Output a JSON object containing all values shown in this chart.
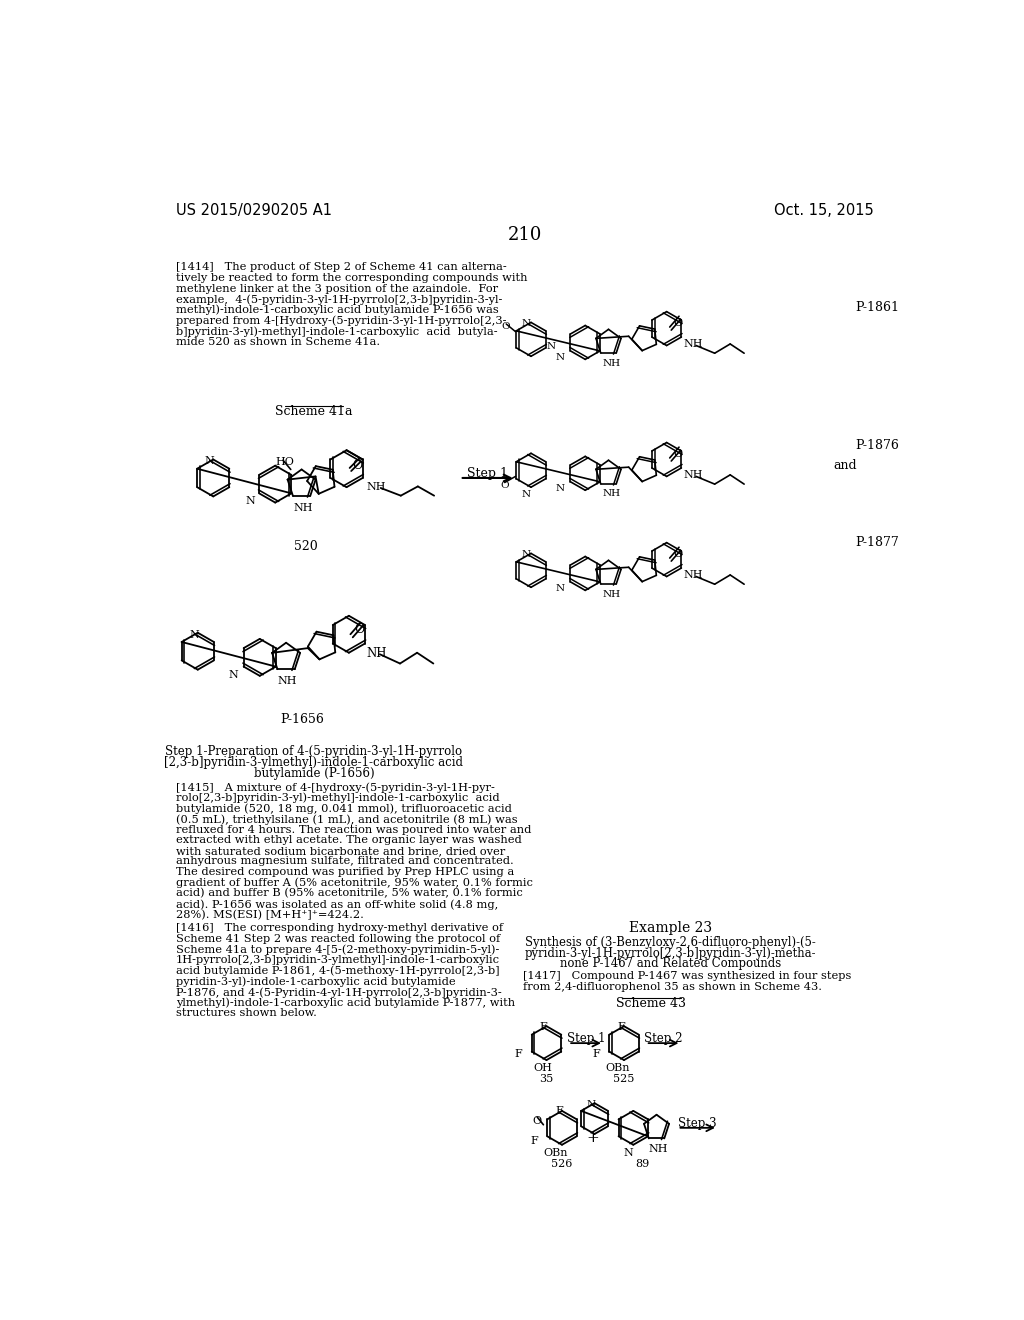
{
  "page_number": "210",
  "header_left": "US 2015/0290205 A1",
  "header_right": "Oct. 15, 2015",
  "background_color": "#ffffff",
  "text_color": "#000000",
  "font_size_header": 10.5,
  "font_size_body": 8.2,
  "font_size_page_num": 13,
  "paragraph_1414_lines": [
    "[1414]   The product of Step 2 of Scheme 41 can alterna-",
    "tively be reacted to form the corresponding compounds with",
    "methylene linker at the 3 position of the azaindole.  For",
    "example,  4-(5-pyridin-3-yl-1H-pyrrolo[2,3-b]pyridin-3-yl-",
    "methyl)-indole-1-carboxylic acid butylamide P-1656 was",
    "prepared from 4-[Hydroxy-(5-pyridin-3-yl-1H-pyrrolo[2,3-",
    "b]pyridin-3-yl)-methyl]-indole-1-carboxylic  acid  butyla-",
    "mide 520 as shown in Scheme 41a."
  ],
  "scheme_41a_label": "Scheme 41a",
  "compound_520_label": "520",
  "step1_label": "Step 1",
  "compound_p1861_label": "P-1861",
  "compound_p1876_label": "P-1876",
  "compound_p1877_label": "P-1877",
  "and_label": "and",
  "compound_p1656_label": "P-1656",
  "step1_prep_lines": [
    "Step 1-Preparation of 4-(5-pyridin-3-yl-1H-pyrrolo",
    "[2,3-b]pyridin-3-ylmethyl)-indole-1-carboxylic acid",
    "butylamide (P-1656)"
  ],
  "paragraph_1415_lines": [
    "[1415]   A mixture of 4-[hydroxy-(5-pyridin-3-yl-1H-pyr-",
    "rolo[2,3-b]pyridin-3-yl)-methyl]-indole-1-carboxylic  acid",
    "butylamide (520, 18 mg, 0.041 mmol), trifluoroacetic acid",
    "(0.5 mL), triethylsilane (1 mL), and acetonitrile (8 mL) was",
    "refluxed for 4 hours. The reaction was poured into water and",
    "extracted with ethyl acetate. The organic layer was washed",
    "with saturated sodium bicarbonate and brine, dried over",
    "anhydrous magnesium sulfate, filtrated and concentrated.",
    "The desired compound was purified by Prep HPLC using a",
    "gradient of buffer A (5% acetonitrile, 95% water, 0.1% formic",
    "acid) and buffer B (95% acetonitrile, 5% water, 0.1% formic",
    "acid). P-1656 was isolated as an off-white solid (4.8 mg,",
    "28%). MS(ESI) [M+H⁺]⁺=424.2."
  ],
  "paragraph_1416_lines": [
    "[1416]   The corresponding hydroxy-methyl derivative of",
    "Scheme 41 Step 2 was reacted following the protocol of",
    "Scheme 41a to prepare 4-[5-(2-methoxy-pyrimidin-5-yl)-",
    "1H-pyrrolo[2,3-b]pyridin-3-ylmethyl]-indole-1-carboxylic",
    "acid butylamide P-1861, 4-(5-methoxy-1H-pyrrolo[2,3-b]",
    "pyridin-3-yl)-indole-1-carboxylic acid butylamide",
    "P-1876, and 4-(5-Pyridin-4-yl-1H-pyrrolo[2,3-b]pyridin-3-",
    "ylmethyl)-indole-1-carboxylic acid butylamide P-1877, with",
    "structures shown below."
  ],
  "example23_label": "Example 23",
  "example23_title_lines": [
    "Synthesis of (3-Benzyloxy-2,6-difluoro-phenyl)-(5-",
    "pyridin-3-yl-1H-pyrrolo[2,3-b]pyridin-3-yl)-metha-",
    "none P-1467 and Related Compounds"
  ],
  "paragraph_1417_lines": [
    "[1417]   Compound P-1467 was synthesized in four steps",
    "from 2,4-difluorophenol 35 as shown in Scheme 43."
  ],
  "scheme43_label": "Scheme 43",
  "compound_35_label": "35",
  "compound_525_label": "525",
  "compound_526_label": "526",
  "compound_89_label": "89",
  "step1_s43": "Step 1",
  "step2_s43": "Step 2",
  "step3_s43": "Step 3"
}
